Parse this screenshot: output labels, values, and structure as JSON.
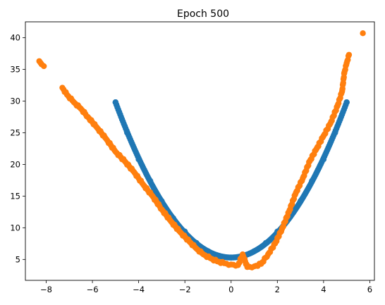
{
  "chart_data": {
    "type": "scatter",
    "title": "Epoch 500",
    "xlabel": "",
    "ylabel": "",
    "xlim": [
      -8.9,
      6.2
    ],
    "ylim": [
      1.7,
      42.5
    ],
    "x_ticks": [
      -8,
      -6,
      -4,
      -2,
      0,
      2,
      4,
      6
    ],
    "y_ticks": [
      5,
      10,
      15,
      20,
      25,
      30,
      35,
      40
    ],
    "grid": false,
    "series": [
      {
        "color": "#1f77b4",
        "curve": "parabola",
        "x_range": [
          -5,
          5
        ],
        "vertex": [
          0,
          5.3
        ],
        "points": [
          [
            -5.0,
            29.8
          ],
          [
            -4.5,
            25.0
          ],
          [
            -4.0,
            20.8
          ],
          [
            -3.5,
            17.4
          ],
          [
            -3.0,
            14.2
          ],
          [
            -2.5,
            11.5
          ],
          [
            -2.0,
            9.4
          ],
          [
            -1.5,
            7.6
          ],
          [
            -1.0,
            6.3
          ],
          [
            -0.5,
            5.5
          ],
          [
            0.0,
            5.3
          ],
          [
            0.5,
            5.5
          ],
          [
            1.0,
            6.3
          ],
          [
            1.5,
            7.6
          ],
          [
            2.0,
            9.4
          ],
          [
            2.5,
            11.5
          ],
          [
            3.0,
            14.2
          ],
          [
            3.5,
            17.4
          ],
          [
            4.0,
            20.8
          ],
          [
            4.5,
            25.0
          ],
          [
            5.0,
            29.8
          ]
        ]
      },
      {
        "color": "#ff7f0e",
        "points": [
          [
            -8.3,
            36.3
          ],
          [
            -8.2,
            35.8
          ],
          [
            -8.1,
            35.5
          ],
          [
            -7.3,
            32.1
          ],
          [
            -7.1,
            31.0
          ],
          [
            -6.8,
            29.8
          ],
          [
            -6.5,
            28.8
          ],
          [
            -6.2,
            27.5
          ],
          [
            -5.8,
            25.8
          ],
          [
            -5.4,
            24.0
          ],
          [
            -5.0,
            22.0
          ],
          [
            -4.6,
            20.5
          ],
          [
            -4.2,
            18.8
          ],
          [
            -3.8,
            16.8
          ],
          [
            -3.4,
            15.0
          ],
          [
            -3.0,
            12.9
          ],
          [
            -2.6,
            11.0
          ],
          [
            -2.2,
            9.3
          ],
          [
            -1.8,
            7.8
          ],
          [
            -1.5,
            6.7
          ],
          [
            -1.2,
            5.8
          ],
          [
            -0.9,
            5.2
          ],
          [
            -0.6,
            4.7
          ],
          [
            -0.3,
            4.4
          ],
          [
            0.0,
            4.2
          ],
          [
            0.3,
            4.1
          ],
          [
            0.5,
            5.8
          ],
          [
            0.7,
            3.8
          ],
          [
            1.0,
            3.9
          ],
          [
            1.3,
            4.3
          ],
          [
            1.6,
            5.8
          ],
          [
            1.9,
            7.5
          ],
          [
            2.2,
            9.8
          ],
          [
            2.5,
            12.5
          ],
          [
            2.8,
            15.5
          ],
          [
            3.1,
            17.8
          ],
          [
            3.4,
            20.5
          ],
          [
            3.7,
            22.5
          ],
          [
            4.0,
            24.5
          ],
          [
            4.3,
            26.5
          ],
          [
            4.6,
            29.2
          ],
          [
            4.8,
            31.5
          ],
          [
            4.9,
            34.5
          ],
          [
            5.0,
            36.0
          ],
          [
            5.1,
            37.3
          ],
          [
            5.7,
            40.7
          ]
        ]
      }
    ]
  }
}
